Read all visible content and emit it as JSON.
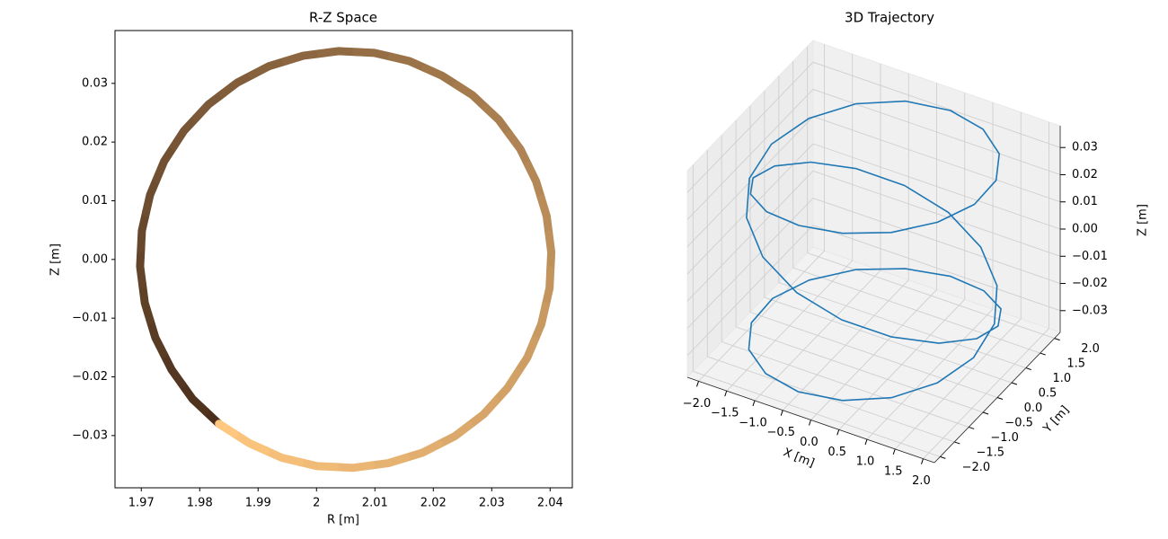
{
  "chart_data": [
    {
      "type": "scatter",
      "title": "R-Z Space",
      "x_label": "R [m]",
      "y_label": "Z [m]",
      "x": [
        1.9833,
        1.9788,
        1.9752,
        1.9724,
        1.9706,
        1.9698,
        1.9701,
        1.9715,
        1.9739,
        1.9773,
        1.9815,
        1.9864,
        1.9918,
        1.9977,
        2.0038,
        2.0099,
        2.0159,
        2.0215,
        2.0267,
        2.0312,
        2.0349,
        2.0376,
        2.0394,
        2.0402,
        2.0399,
        2.0385,
        2.0361,
        2.0327,
        2.0286,
        2.0237,
        2.0182,
        2.0123,
        2.0062,
        2.0001,
        1.9941,
        1.9885,
        1.9833
      ],
      "values": [
        -0.028,
        -0.0238,
        -0.0188,
        -0.0133,
        -0.0074,
        -0.0012,
        0.0049,
        0.011,
        0.0167,
        0.0219,
        0.0264,
        0.0301,
        0.0329,
        0.0347,
        0.0355,
        0.0352,
        0.0338,
        0.0313,
        0.028,
        0.0238,
        0.0188,
        0.0133,
        0.0074,
        0.0012,
        -0.0049,
        -0.011,
        -0.0167,
        -0.0219,
        -0.0264,
        -0.0301,
        -0.0329,
        -0.0347,
        -0.0355,
        -0.0352,
        -0.0338,
        -0.0313,
        -0.028
      ],
      "colors": [
        "#4a2f1c",
        "#ffc77f"
      ],
      "xlim": [
        1.9655,
        2.0438
      ],
      "ylim": [
        -0.0389,
        0.039
      ],
      "xticks": [
        1.97,
        1.98,
        1.99,
        2.0,
        2.01,
        2.02,
        2.03,
        2.04
      ],
      "xtick_labels_fix": null,
      "yticks": [
        {
          "value": -0.03,
          "label": "−0.03"
        },
        {
          "value": -0.02,
          "label": "−0.02"
        },
        {
          "value": -0.01,
          "label": "−0.01"
        },
        {
          "value": 0,
          "label": "0.00"
        },
        0.01,
        0.02,
        0.03
      ]
    },
    {
      "type": "line3d",
      "title": "3D Trajectory",
      "x_label": "X [m]",
      "y_label": "Y [m]",
      "z_label": "Z [m]",
      "color": "#1f77b4",
      "grid": true,
      "x": [
        1.14,
        1.67,
        1.95,
        1.93,
        1.62,
        1.06,
        0.34,
        -0.43,
        -1.13,
        -1.66,
        -1.94,
        -1.93,
        -1.62,
        -1.06,
        -0.34,
        0.43,
        1.14,
        1.68,
        1.97,
        1.96,
        1.65,
        1.08,
        0.35,
        -0.44,
        -1.16,
        -1.71,
        -2.0,
        -1.99,
        -1.67,
        -1.1,
        -0.35,
        0.44,
        1.17,
        1.72,
        2.01,
        1.99,
        1.67,
        1.09,
        0.35,
        -0.44,
        -1.16,
        -1.7,
        -1.98,
        -1.96,
        -1.64,
        -1.07,
        -0.35,
        0.43,
        1.14
      ],
      "y": [
        -1.62,
        -1.06,
        -0.34,
        0.43,
        1.13,
        1.66,
        1.94,
        1.92,
        1.61,
        1.06,
        0.34,
        -0.43,
        -1.13,
        -1.67,
        -1.95,
        -1.94,
        -1.63,
        -1.07,
        -0.35,
        0.43,
        1.15,
        1.7,
        1.99,
        1.98,
        1.66,
        1.09,
        0.35,
        -0.44,
        -1.17,
        -1.72,
        -2.01,
        -1.99,
        -1.67,
        -1.1,
        -0.35,
        0.44,
        1.17,
        1.71,
        2.0,
        1.97,
        1.65,
        1.08,
        0.35,
        -0.43,
        -1.15,
        -1.68,
        -1.96,
        -1.94,
        -1.62
      ],
      "z": [
        -0.028,
        -0.0249,
        -0.0214,
        -0.0175,
        -0.0133,
        -0.0089,
        -0.0043,
        0.0003,
        0.0049,
        0.0095,
        0.0139,
        0.018,
        0.0219,
        0.0253,
        0.0284,
        0.0309,
        0.0329,
        0.0344,
        0.0352,
        0.0355,
        0.0352,
        0.0342,
        0.0327,
        0.0306,
        0.028,
        0.0249,
        0.0214,
        0.0175,
        0.0133,
        0.0089,
        0.0043,
        -0.0003,
        -0.0049,
        -0.0095,
        -0.0139,
        -0.018,
        -0.0219,
        -0.0253,
        -0.0284,
        -0.0309,
        -0.0329,
        -0.0344,
        -0.0352,
        -0.0355,
        -0.0352,
        -0.0342,
        -0.0327,
        -0.0306,
        -0.028
      ],
      "xlim": [
        -2.2,
        2.2
      ],
      "ylim": [
        -2.2,
        2.2
      ],
      "zlim": [
        -0.038,
        0.038
      ],
      "xticks": [
        {
          "value": -2,
          "label": "−2.0"
        },
        {
          "value": -1.5,
          "label": "−1.5"
        },
        {
          "value": -1,
          "label": "−1.0"
        },
        {
          "value": -0.5,
          "label": "−0.5"
        },
        {
          "value": 0,
          "label": "0.0"
        },
        0.5,
        {
          "value": 1,
          "label": "1.0"
        },
        1.5,
        {
          "value": 2,
          "label": "2.0"
        }
      ],
      "yticks": [
        {
          "value": -2,
          "label": "−2.0"
        },
        {
          "value": -1.5,
          "label": "−1.5"
        },
        {
          "value": -1,
          "label": "−1.0"
        },
        {
          "value": -0.5,
          "label": "−0.5"
        },
        {
          "value": 0,
          "label": "0.0"
        },
        0.5,
        {
          "value": 1,
          "label": "1.0"
        },
        1.5,
        {
          "value": 2,
          "label": "2.0"
        }
      ],
      "zticks": [
        {
          "value": -0.03,
          "label": "−0.03"
        },
        {
          "value": -0.02,
          "label": "−0.02"
        },
        {
          "value": -0.01,
          "label": "−0.01"
        },
        {
          "value": 0,
          "label": "0.00"
        },
        0.01,
        0.02,
        0.03
      ]
    }
  ]
}
